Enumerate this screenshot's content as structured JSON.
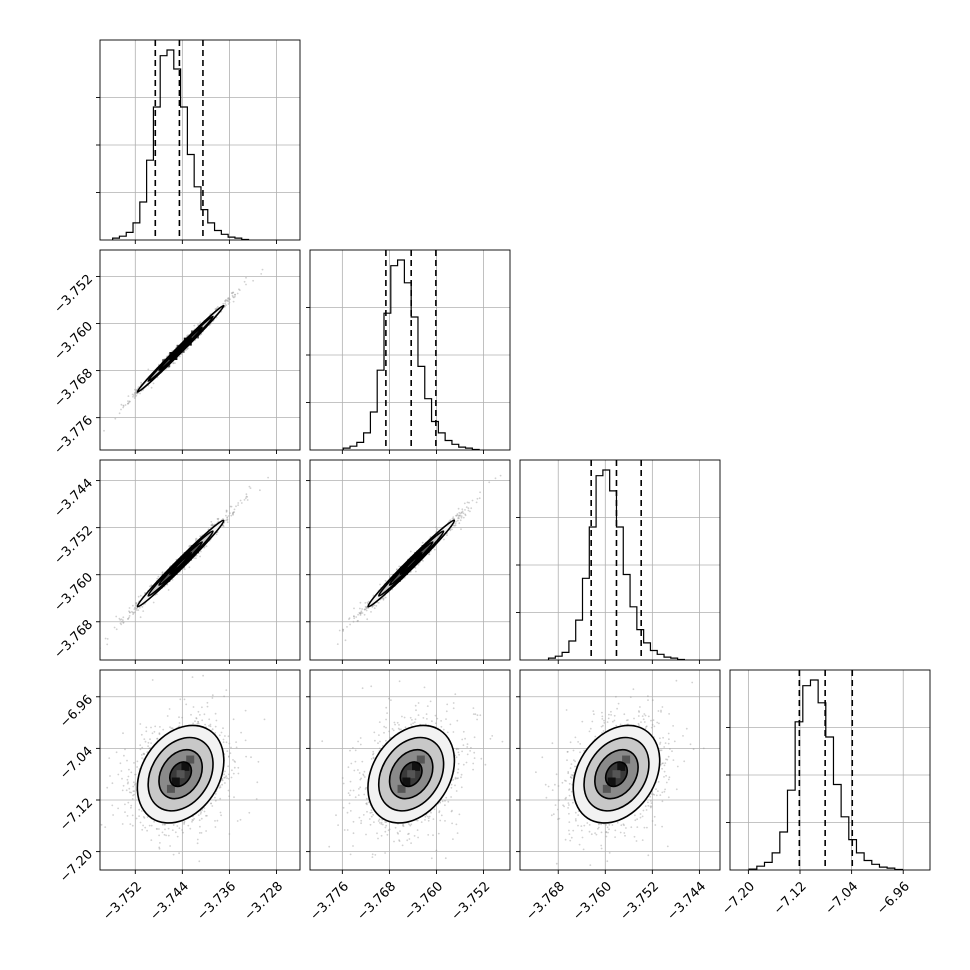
{
  "chart_data": {
    "type": "corner",
    "parameters": [
      {
        "index": 0,
        "range": [
          -3.758,
          -3.724
        ],
        "ticks": [
          -3.752,
          -3.744,
          -3.736,
          -3.728
        ],
        "tick_labels": [
          "−3.752",
          "−3.744",
          "−3.736",
          "−3.728"
        ],
        "mean": -3.7443,
        "sigma": 0.0035,
        "quantiles": [
          -3.7486,
          -3.7445,
          -3.7405
        ]
      },
      {
        "index": 1,
        "range": [
          -3.7815,
          -3.7475
        ],
        "ticks": [
          -3.776,
          -3.768,
          -3.76,
          -3.752
        ],
        "tick_labels": [
          "−3.776",
          "−3.768",
          "−3.760",
          "−3.752"
        ],
        "mean": -3.7643,
        "sigma": 0.0035,
        "quantiles": [
          -3.7686,
          -3.7643,
          -3.7601
        ]
      },
      {
        "index": 2,
        "range": [
          -3.7745,
          -3.7405
        ],
        "ticks": [
          -3.768,
          -3.76,
          -3.752,
          -3.744
        ],
        "tick_labels": [
          "−3.768",
          "−3.760",
          "−3.752",
          "−3.744"
        ],
        "mean": -3.7581,
        "sigma": 0.0035,
        "quantiles": [
          -3.7624,
          -3.7581,
          -3.7539
        ]
      },
      {
        "index": 3,
        "range": [
          -7.2285,
          -6.9185
        ],
        "ticks": [
          -7.2,
          -7.12,
          -7.04,
          -6.96
        ],
        "tick_labels": [
          "−7.20",
          "−7.12",
          "−7.04",
          "−6.96"
        ],
        "mean": -7.08,
        "sigma": 0.036,
        "quantiles": [
          -7.121,
          -7.081,
          -7.039
        ]
      }
    ],
    "histograms": [
      {
        "param": 0,
        "counts": [
          1,
          2,
          4,
          9,
          20,
          42,
          70,
          97,
          100,
          90,
          70,
          45,
          28,
          16,
          9,
          5,
          3,
          1.5,
          1,
          0.3
        ]
      },
      {
        "param": 1,
        "counts": [
          1,
          2,
          4,
          9,
          20,
          42,
          72,
          97,
          100,
          88,
          70,
          44,
          27,
          15,
          9,
          5,
          3,
          1.5,
          1,
          0.3
        ]
      },
      {
        "param": 2,
        "counts": [
          1,
          2,
          4,
          10,
          21,
          43,
          70,
          97,
          100,
          89,
          70,
          45,
          28,
          16,
          9,
          5,
          3,
          1.5,
          1,
          0.3
        ]
      },
      {
        "param": 3,
        "counts": [
          0.5,
          2,
          4,
          9,
          20,
          42,
          78,
          97,
          100,
          88,
          70,
          45,
          28,
          16,
          9,
          5,
          3,
          1.5,
          1,
          0.3
        ]
      }
    ],
    "pairs": [
      {
        "x": 0,
        "y": 1,
        "correlation": 0.995
      },
      {
        "x": 0,
        "y": 2,
        "correlation": 0.99
      },
      {
        "x": 1,
        "y": 2,
        "correlation": 0.99
      },
      {
        "x": 0,
        "y": 3,
        "correlation": 0.28
      },
      {
        "x": 1,
        "y": 3,
        "correlation": 0.28
      },
      {
        "x": 2,
        "y": 3,
        "correlation": 0.28
      }
    ],
    "contour_levels_sigma": [
      0.5,
      1.0,
      1.5,
      2.0
    ],
    "grid": true
  }
}
